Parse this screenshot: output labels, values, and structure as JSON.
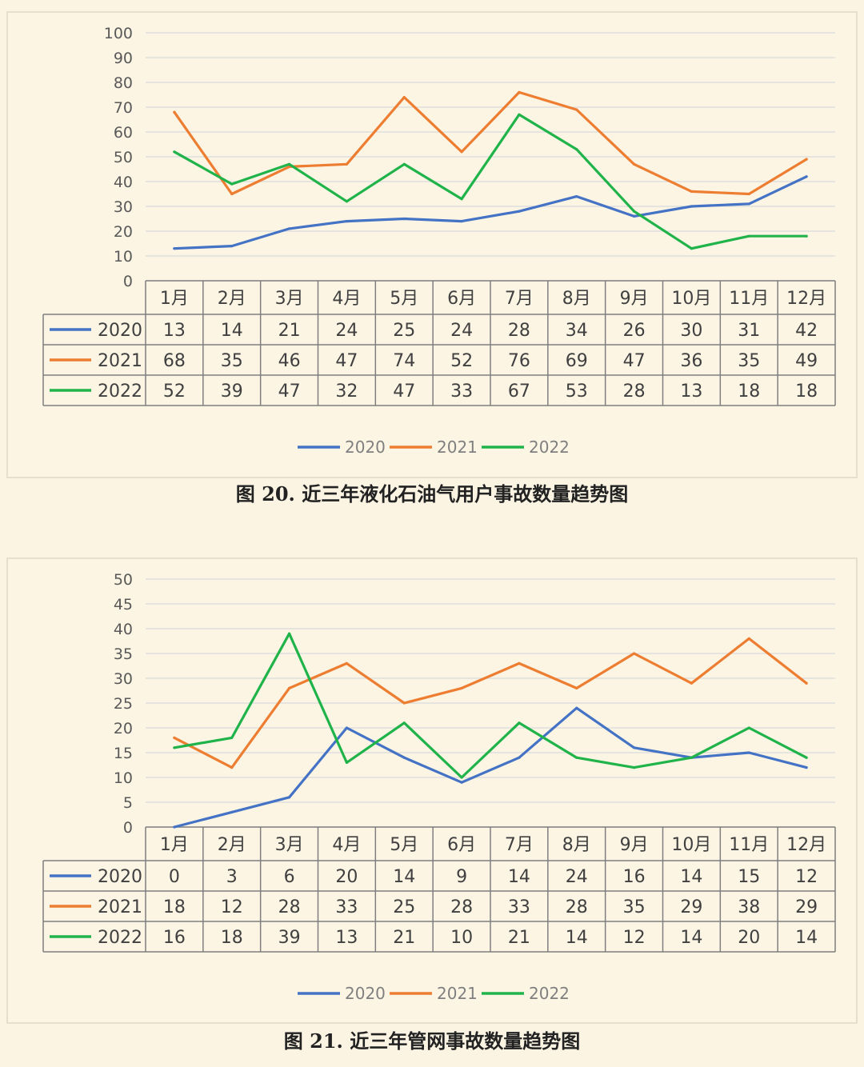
{
  "chart_data": [
    {
      "type": "line",
      "title": "",
      "caption": "图 20.  近三年液化石油气用户事故数量趋势图",
      "categories": [
        "1月",
        "2月",
        "3月",
        "4月",
        "5月",
        "6月",
        "7月",
        "8月",
        "9月",
        "10月",
        "11月",
        "12月"
      ],
      "ylim": [
        0,
        100
      ],
      "yticks": [
        0,
        10,
        20,
        30,
        40,
        50,
        60,
        70,
        80,
        90,
        100
      ],
      "grid": true,
      "legend_position": "bottom",
      "data_table": true,
      "series": [
        {
          "name": "2020",
          "color": "#4472c4",
          "values": [
            13,
            14,
            21,
            24,
            25,
            24,
            28,
            34,
            26,
            30,
            31,
            42
          ]
        },
        {
          "name": "2021",
          "color": "#ed7d31",
          "values": [
            68,
            35,
            46,
            47,
            74,
            52,
            76,
            69,
            47,
            36,
            35,
            49
          ]
        },
        {
          "name": "2022",
          "color": "#1fb34a",
          "values": [
            52,
            39,
            47,
            32,
            47,
            33,
            67,
            53,
            28,
            13,
            18,
            18
          ]
        }
      ]
    },
    {
      "type": "line",
      "title": "",
      "caption": "图 21.  近三年管网事故数量趋势图",
      "categories": [
        "1月",
        "2月",
        "3月",
        "4月",
        "5月",
        "6月",
        "7月",
        "8月",
        "9月",
        "10月",
        "11月",
        "12月"
      ],
      "ylim": [
        0,
        50
      ],
      "yticks": [
        0,
        5,
        10,
        15,
        20,
        25,
        30,
        35,
        40,
        45,
        50
      ],
      "grid": true,
      "legend_position": "bottom",
      "data_table": true,
      "series": [
        {
          "name": "2020",
          "color": "#4472c4",
          "values": [
            0,
            3,
            6,
            20,
            14,
            9,
            14,
            24,
            16,
            14,
            15,
            12
          ]
        },
        {
          "name": "2021",
          "color": "#ed7d31",
          "values": [
            18,
            12,
            28,
            33,
            25,
            28,
            33,
            28,
            35,
            29,
            38,
            29
          ]
        },
        {
          "name": "2022",
          "color": "#1fb34a",
          "values": [
            16,
            18,
            39,
            13,
            21,
            10,
            21,
            14,
            12,
            14,
            20,
            14
          ]
        }
      ]
    }
  ]
}
